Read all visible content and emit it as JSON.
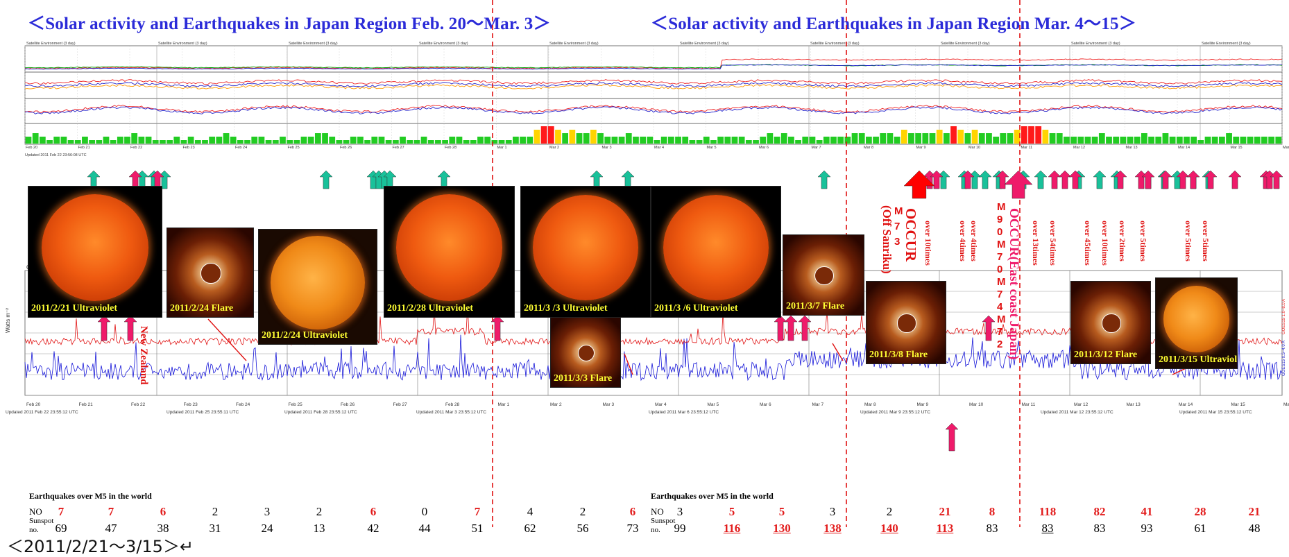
{
  "titles": {
    "left": "＜Solar activity and Earthquakes in Japan Region Feb. 20～Mar. 3＞",
    "right": "＜Solar activity and Earthquakes in Japan Region Mar. 4～15＞"
  },
  "footer": "＜2011/2/21～3/15＞↵",
  "goes_env": {
    "header": "Satellite Environment (3 day)",
    "axis": "Universal Time",
    "dates": [
      "Feb 20",
      "Feb 21",
      "Feb 22",
      "Feb 23",
      "Feb 24",
      "Feb 25",
      "Feb 26",
      "Feb 27",
      "Feb 28",
      "Mar 1",
      "Mar 2",
      "Mar 3",
      "Mar 4",
      "Mar 5",
      "Mar 6",
      "Mar 7",
      "Mar 8",
      "Mar 9",
      "Mar 10",
      "Mar 11",
      "Mar 12",
      "Mar 13",
      "Mar 14",
      "Mar 15",
      "Mar 16"
    ]
  },
  "xray": {
    "header": "GOES Xray Flux (5 minute data)",
    "ylabel": "Watts m⁻²",
    "axis": "Universal Time",
    "right_labels": [
      "GOES15 0.5–4.0 A",
      "GOES15 1.0–8.0 A"
    ],
    "updated": [
      "Updated 2011 Feb 22 23:55:12 UTC",
      "NOAA/SWPC Boulder, CO",
      "Updated 2011 Feb 25 23:55:11 UTC",
      "Updated 2011 Feb 28 23:55:12 UTC",
      "Updated 2011 Mar 3 23:55:12 UTC",
      "Updated 2011 Mar 6 23:55:12 UTC",
      "Updated 2011 Mar 9 23:55:12 UTC",
      "Updated 2011 Mar 12 23:55:12 UTC",
      "Updated 2011 Mar 15 23:55:12 UTC"
    ]
  },
  "photos": [
    {
      "caption": "2011/2/21 Ultraviolet",
      "kind": "sun"
    },
    {
      "caption": "2011/2/24 Flare",
      "kind": "corona"
    },
    {
      "caption": "2011/2/24 Ultraviolet",
      "kind": "sun2"
    },
    {
      "caption": "2011/2/28 Ultraviolet",
      "kind": "sun"
    },
    {
      "caption": "2011/3 /3 Ultraviolet",
      "kind": "sun"
    },
    {
      "caption": "2011/3/3 Flare",
      "kind": "corona"
    },
    {
      "caption": "2011/3 /6 Ultraviolet",
      "kind": "sun"
    },
    {
      "caption": "2011/3/7 Flare",
      "kind": "corona"
    },
    {
      "caption": "2011/3/8 Flare",
      "kind": "corona"
    },
    {
      "caption": "2011/3/12 Flare",
      "kind": "corona"
    },
    {
      "caption": "2011/3/15 Ultraviolet",
      "kind": "sun2"
    }
  ],
  "annotations": {
    "new_zealand": "New Zealand",
    "off_sanriku": "(Off Sanriku)",
    "occur1": "OCCUR",
    "occur2": "OCCUR(East coast Japan)",
    "m73": [
      "M",
      "7",
      "3"
    ],
    "m90": [
      "M",
      "9",
      "0",
      "M",
      "7",
      "0",
      "M",
      "7",
      "4",
      "M",
      "7",
      "2"
    ],
    "over_labels": [
      "over 10times",
      "over 4times",
      "over 4times",
      "over 13times",
      "over 54times",
      "over 45times",
      "over 10times",
      "over 2times",
      "over 5times",
      "over 5times",
      "over 5times"
    ]
  },
  "table": {
    "eq_label": "Earthquakes over M5 in the world",
    "no_label": "NO",
    "sunspot_label": [
      "Sunspot",
      "no."
    ],
    "no": [
      "7",
      "7",
      "6",
      "2",
      "3",
      "2",
      "6",
      "0",
      "7",
      "4",
      "2",
      "6",
      "3",
      "5",
      "5",
      "3",
      "2",
      "21",
      "8",
      "118",
      "82",
      "41",
      "28",
      "21"
    ],
    "sunspot": [
      "69",
      "47",
      "38",
      "31",
      "24",
      "13",
      "42",
      "44",
      "51",
      "62",
      "56",
      "73",
      "99",
      "116",
      "130",
      "138",
      "140",
      "113",
      "83",
      "83",
      "83",
      "93",
      "61",
      "48"
    ],
    "no_red": [
      0,
      1,
      2,
      6,
      8,
      11,
      13,
      14,
      17,
      18,
      19,
      20,
      21,
      22,
      23
    ],
    "sunspot_red": [
      13,
      14,
      15,
      16,
      17
    ],
    "underlined": [
      13,
      14,
      15,
      16,
      17,
      19
    ]
  },
  "chart_data": {
    "type": "table",
    "title": "Solar activity and Earthquakes in Japan Region",
    "categories": [
      "2/20",
      "2/21",
      "2/22",
      "2/23",
      "2/24",
      "2/25",
      "2/26",
      "2/27",
      "2/28",
      "3/1",
      "3/2",
      "3/3",
      "3/4",
      "3/5",
      "3/6",
      "3/7",
      "3/8",
      "3/9",
      "3/10",
      "3/11",
      "3/12",
      "3/13",
      "3/14",
      "3/15"
    ],
    "series": [
      {
        "name": "Earthquakes over M5 in the world",
        "values": [
          7,
          7,
          6,
          2,
          3,
          2,
          6,
          0,
          7,
          4,
          2,
          6,
          3,
          5,
          5,
          3,
          2,
          21,
          8,
          118,
          82,
          41,
          28,
          21
        ]
      },
      {
        "name": "Sunspot no.",
        "values": [
          69,
          47,
          38,
          31,
          24,
          13,
          42,
          44,
          51,
          62,
          56,
          73,
          99,
          116,
          130,
          138,
          140,
          113,
          83,
          83,
          83,
          93,
          61,
          48
        ]
      }
    ],
    "kp_bars": [
      2,
      3,
      2,
      1,
      2,
      2,
      1,
      1,
      2,
      1,
      1,
      2,
      1,
      2,
      2,
      3,
      2,
      2,
      1,
      1,
      1,
      2,
      1,
      2,
      1,
      1,
      2,
      2,
      3,
      2,
      1,
      1,
      2,
      2,
      1,
      1,
      2,
      1,
      1,
      2,
      2,
      3,
      3,
      2,
      1,
      1,
      2,
      2,
      1,
      2,
      2,
      1,
      1,
      2,
      1,
      1,
      2,
      1,
      1,
      1,
      2,
      2,
      1,
      1,
      2,
      2,
      1,
      1,
      1,
      2,
      2,
      2,
      4,
      5,
      5,
      4,
      3,
      4,
      3,
      3,
      4,
      3,
      2,
      2,
      2,
      3,
      2,
      2,
      2,
      1,
      2,
      2,
      2,
      2,
      1,
      1,
      2,
      1,
      2,
      2,
      2,
      2,
      1,
      1,
      2,
      3,
      2,
      3,
      2,
      1,
      2,
      2,
      1,
      2,
      2,
      2,
      2,
      3,
      3,
      2,
      2,
      3,
      3,
      2,
      4,
      3,
      3,
      3,
      3,
      4,
      3,
      5,
      4,
      3,
      4,
      3,
      3,
      2,
      3,
      3,
      4,
      5,
      5,
      5,
      4,
      3,
      3,
      2,
      2,
      2,
      2,
      2,
      3,
      2,
      2,
      2,
      2,
      2,
      3,
      2,
      2,
      3,
      2,
      2,
      2,
      2,
      1,
      2,
      2,
      2,
      3,
      2,
      2,
      2,
      2,
      2,
      2,
      2
    ]
  }
}
